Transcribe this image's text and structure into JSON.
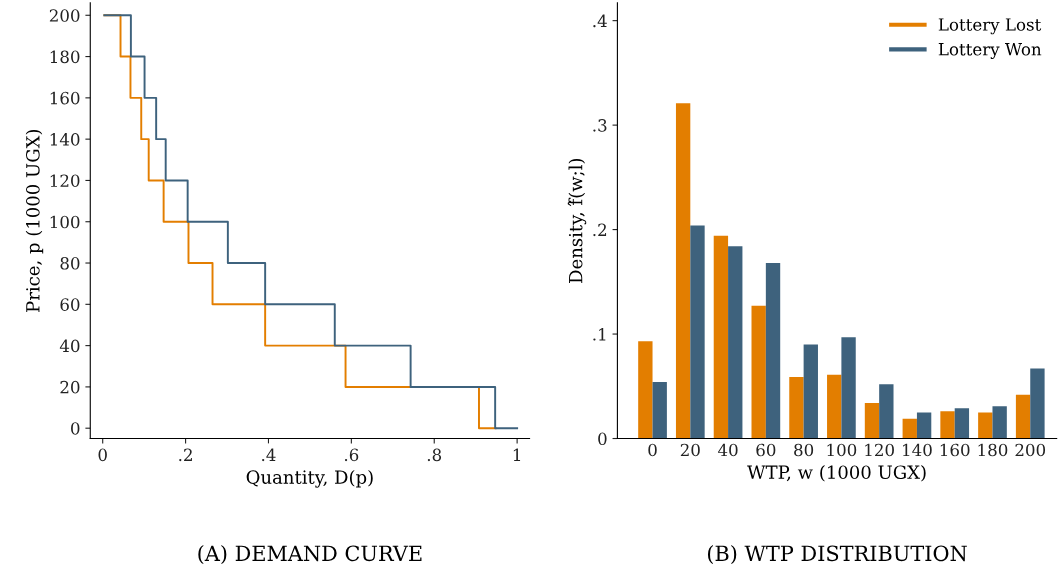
{
  "chart_data": [
    {
      "type": "step",
      "title": "(A) DEMAND CURVE",
      "xlabel": "Quantity, D(p)",
      "ylabel": "Price, p (1000 UGX)",
      "xlim": [
        -0.03,
        1.03
      ],
      "ylim": [
        -5,
        206
      ],
      "xticks": [
        0,
        {
          "value": 0.2,
          "label": ".2"
        },
        {
          "value": 0.4,
          "label": ".4"
        },
        {
          "value": 0.6,
          "label": ".6"
        },
        {
          "value": 0.8,
          "label": ".8"
        },
        1
      ],
      "yticks": [
        0,
        20,
        40,
        60,
        80,
        100,
        120,
        140,
        160,
        180,
        200
      ],
      "series": [
        {
          "color": "#e37e00",
          "x": [
            0.004,
            0.043,
            0.067,
            0.093,
            0.111,
            0.147,
            0.207,
            0.265,
            0.392,
            0.586,
            0.908,
            0.948
          ],
          "values": [
            200,
            180,
            160,
            140,
            120,
            100,
            80,
            60,
            40,
            20,
            0,
            0
          ]
        },
        {
          "color": "#3e627d",
          "x": [
            0.004,
            0.068,
            0.101,
            0.129,
            0.152,
            0.205,
            0.302,
            0.392,
            0.56,
            0.743,
            0.947,
            1.0
          ],
          "values": [
            200,
            180,
            160,
            140,
            120,
            100,
            80,
            60,
            40,
            20,
            0,
            0
          ]
        }
      ]
    },
    {
      "type": "bar",
      "title": "(B) WTP DISTRIBUTION",
      "xlabel": "WTP, w (1000 UGX)",
      "ylabel": "Density, f̂(w;l)",
      "categories": [
        "0",
        "20",
        "40",
        "60",
        "80",
        "100",
        "120",
        "140",
        "160",
        "180",
        "200"
      ],
      "ylim": [
        0,
        0.417
      ],
      "yticks": [
        0,
        {
          "value": 0.1,
          "label": ".1"
        },
        {
          "value": 0.2,
          "label": ".2"
        },
        {
          "value": 0.3,
          "label": ".3"
        },
        {
          "value": 0.4,
          "label": ".4"
        }
      ],
      "legend": "top right",
      "series": [
        {
          "name": "Lottery Lost",
          "color": "#e37e00",
          "values": [
            0.093,
            0.321,
            0.194,
            0.127,
            0.059,
            0.061,
            0.034,
            0.019,
            0.026,
            0.025,
            0.042
          ]
        },
        {
          "name": "Lottery Won",
          "color": "#3e627d",
          "values": [
            0.054,
            0.204,
            0.184,
            0.168,
            0.09,
            0.097,
            0.052,
            0.025,
            0.029,
            0.031,
            0.067
          ]
        }
      ]
    }
  ]
}
